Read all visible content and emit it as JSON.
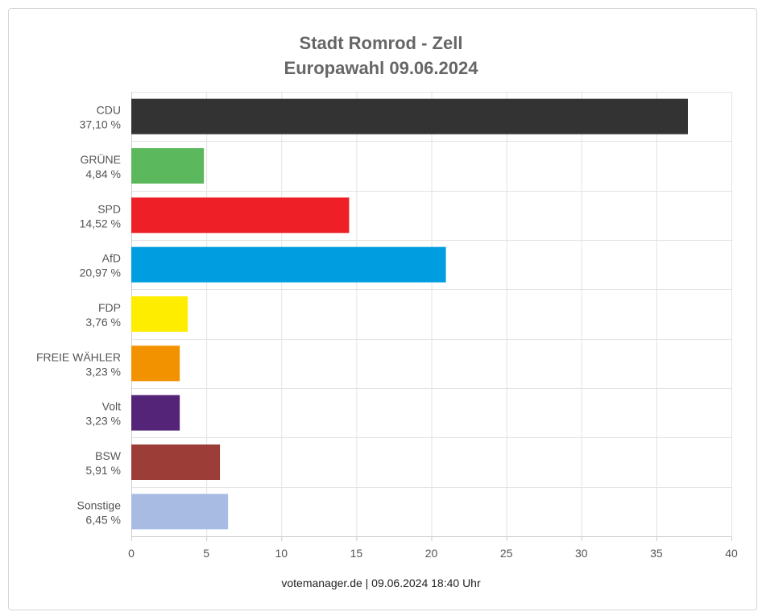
{
  "title_line1": "Stadt Romrod - Zell",
  "title_line2": "Europawahl 09.06.2024",
  "footer": "votemanager.de | 09.06.2024 18:40 Uhr",
  "chart_data": {
    "type": "bar",
    "orientation": "horizontal",
    "title": "Stadt Romrod - Zell Europawahl 09.06.2024",
    "categories": [
      "CDU",
      "GRÜNE",
      "SPD",
      "AfD",
      "FDP",
      "FREIE WÄHLER",
      "Volt",
      "BSW",
      "Sonstige"
    ],
    "value_labels": [
      "37,10 %",
      "4,84 %",
      "14,52 %",
      "20,97 %",
      "3,76 %",
      "3,23 %",
      "3,23 %",
      "5,91 %",
      "6,45 %"
    ],
    "values": [
      37.1,
      4.84,
      14.52,
      20.97,
      3.76,
      3.23,
      3.23,
      5.91,
      6.45
    ],
    "colors": [
      "#333333",
      "#5cb85c",
      "#ee1f26",
      "#009ee0",
      "#ffed00",
      "#f39200",
      "#542479",
      "#9c3e37",
      "#a8bbe3"
    ],
    "xlim": [
      0,
      40
    ],
    "x_ticks": [
      0,
      5,
      10,
      15,
      20,
      25,
      30,
      35,
      40
    ],
    "grid": true,
    "legend": "none"
  }
}
